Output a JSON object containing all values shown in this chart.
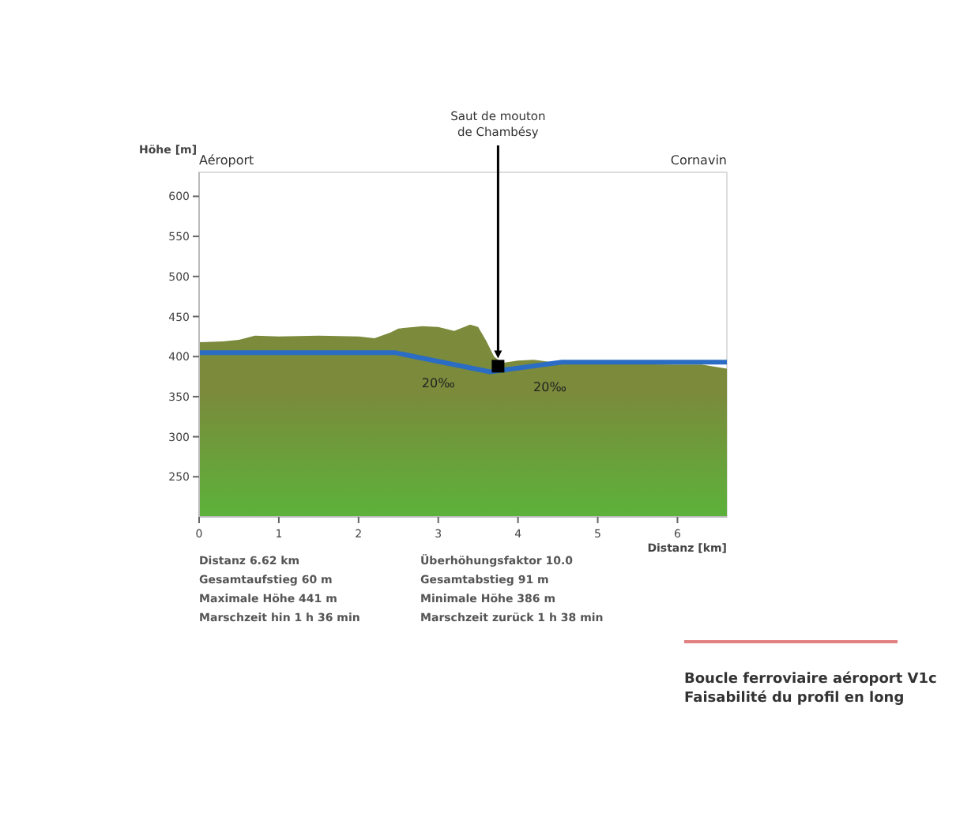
{
  "chart_data": {
    "type": "area",
    "title": "Boucle ferroviaire aéroport V1c",
    "subtitle": "Faisabilité du profil en long",
    "xlabel": "Distanz [km]",
    "ylabel": "Höhe [m]",
    "series": [
      {
        "color": "#7b8a3b",
        "x": [
          0,
          0.3,
          0.5,
          0.7,
          1,
          1.5,
          2,
          2.2,
          2.4,
          2.5,
          2.8,
          3,
          3.2,
          3.4,
          3.5,
          3.6,
          3.7,
          3.8,
          4,
          4.2,
          4.5,
          5,
          6,
          6.3,
          6.5,
          6.62
        ],
        "values": [
          418,
          419,
          421,
          426,
          425,
          426,
          425,
          423,
          430,
          435,
          438,
          437,
          432,
          440,
          437,
          420,
          400,
          392,
          395,
          396,
          392,
          391,
          390,
          390,
          387,
          385
        ]
      },
      {
        "type": "line",
        "color": "#2b6cc4",
        "x": [
          0,
          2.45,
          3.65,
          4.55,
          6.62
        ],
        "values": [
          405,
          405,
          381,
          393,
          393
        ]
      },
      {
        "type": "scatter",
        "color": "#000000",
        "marker": "square",
        "x": [
          3.75
        ],
        "values": [
          388
        ]
      }
    ],
    "xlim": [
      0,
      6.62
    ],
    "ylim": [
      200,
      630
    ],
    "xticks": [
      0,
      1,
      2,
      3,
      4,
      5,
      6
    ],
    "yticks": [
      250,
      300,
      350,
      400,
      450,
      500,
      550,
      600
    ],
    "grid": false,
    "annotations": [
      {
        "text": "Saut de mouton\nde Chambésy",
        "x": 3.75,
        "y": 388
      },
      {
        "text": "20‰",
        "x": 3.0,
        "y": 385
      },
      {
        "text": "20‰",
        "x": 4.4,
        "y": 380
      },
      "Aéroport",
      "Cornavin",
      "Distanz 6.62 km",
      "Gesamtaufstieg  60 m",
      "Maximale Höhe  441 m",
      "Marschzeit hin  1 h 36 min",
      "Überhöhungsfaktor 10.0",
      "Gesamtabstieg  91 m",
      "Minimale Höhe  386 m",
      "Marschzeit zurück  1 h 38 min"
    ]
  }
}
